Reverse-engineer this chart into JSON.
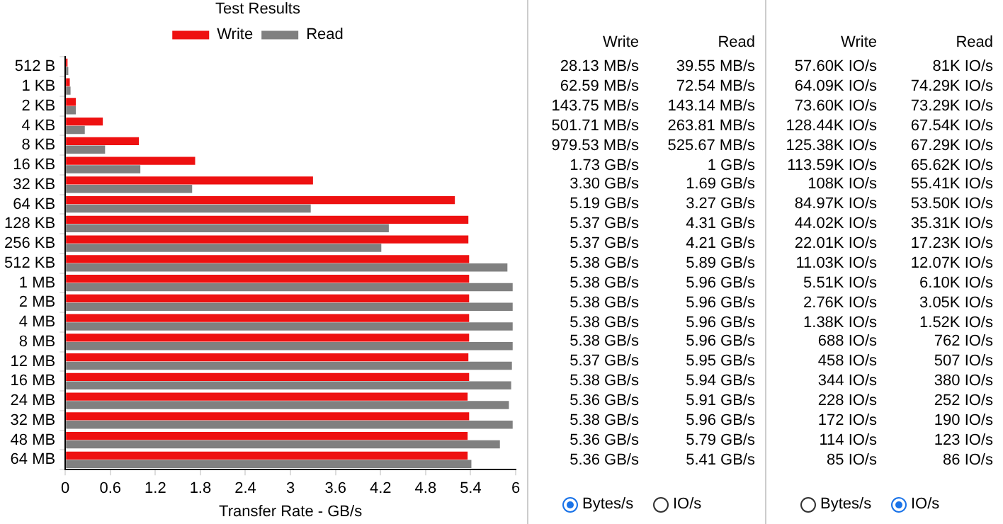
{
  "chart_data": [
    {
      "type": "bar",
      "orientation": "horizontal",
      "title": "Test Results",
      "xlabel": "Transfer Rate - GB/s",
      "categories": [
        "512 B",
        "1 KB",
        "2 KB",
        "4 KB",
        "8 KB",
        "16 KB",
        "32 KB",
        "64 KB",
        "128 KB",
        "256 KB",
        "512 KB",
        "1 MB",
        "2 MB",
        "4 MB",
        "8 MB",
        "12 MB",
        "16 MB",
        "24 MB",
        "32 MB",
        "48 MB",
        "64 MB"
      ],
      "series": [
        {
          "name": "Write",
          "color": "#ee1111",
          "values": [
            0.03,
            0.06,
            0.14,
            0.5,
            0.98,
            1.73,
            3.3,
            5.19,
            5.37,
            5.37,
            5.38,
            5.38,
            5.38,
            5.38,
            5.38,
            5.37,
            5.38,
            5.36,
            5.38,
            5.36,
            5.36
          ]
        },
        {
          "name": "Read",
          "color": "#808080",
          "values": [
            0.04,
            0.07,
            0.14,
            0.26,
            0.53,
            1,
            1.69,
            3.27,
            4.31,
            4.21,
            5.89,
            5.96,
            5.96,
            5.96,
            5.96,
            5.95,
            5.94,
            5.91,
            5.96,
            5.79,
            5.41
          ]
        }
      ],
      "xlim": [
        0,
        6
      ],
      "xticks": [
        0,
        0.6,
        1.2,
        1.8,
        2.4,
        3,
        3.6,
        4.2,
        4.8,
        5.4,
        6
      ],
      "legend": "top"
    },
    {
      "type": "other",
      "annotations": [
        "Write",
        "Read",
        "28.13 MB/s",
        "39.55 MB/s",
        "62.59 MB/s",
        "72.54 MB/s",
        "143.75 MB/s",
        "143.14 MB/s",
        "501.71 MB/s",
        "263.81 MB/s",
        "979.53 MB/s",
        "525.67 MB/s",
        "1.73 GB/s",
        "1 GB/s",
        "3.30 GB/s",
        "1.69 GB/s",
        "5.19 GB/s",
        "3.27 GB/s",
        "5.37 GB/s",
        "4.31 GB/s",
        "5.37 GB/s",
        "4.21 GB/s",
        "5.38 GB/s",
        "5.89 GB/s",
        "5.38 GB/s",
        "5.96 GB/s",
        "5.38 GB/s",
        "5.96 GB/s",
        "5.38 GB/s",
        "5.96 GB/s",
        "5.38 GB/s",
        "5.96 GB/s",
        "5.37 GB/s",
        "5.95 GB/s",
        "5.38 GB/s",
        "5.94 GB/s",
        "5.36 GB/s",
        "5.91 GB/s",
        "5.38 GB/s",
        "5.96 GB/s",
        "5.36 GB/s",
        "5.79 GB/s",
        "5.36 GB/s",
        "5.41 GB/s",
        "Bytes/s",
        "IO/s"
      ]
    },
    {
      "type": "other",
      "annotations": [
        "Write",
        "Read",
        "57.60K IO/s",
        "81K IO/s",
        "64.09K IO/s",
        "74.29K IO/s",
        "73.60K IO/s",
        "73.29K IO/s",
        "128.44K IO/s",
        "67.54K IO/s",
        "125.38K IO/s",
        "67.29K IO/s",
        "113.59K IO/s",
        "65.62K IO/s",
        "108K IO/s",
        "55.41K IO/s",
        "84.97K IO/s",
        "53.50K IO/s",
        "44.02K IO/s",
        "35.31K IO/s",
        "22.01K IO/s",
        "17.23K IO/s",
        "11.03K IO/s",
        "12.07K IO/s",
        "5.51K IO/s",
        "6.10K IO/s",
        "2.76K IO/s",
        "3.05K IO/s",
        "1.38K IO/s",
        "1.52K IO/s",
        "688 IO/s",
        "762 IO/s",
        "458 IO/s",
        "507 IO/s",
        "344 IO/s",
        "380 IO/s",
        "228 IO/s",
        "252 IO/s",
        "172 IO/s",
        "190 IO/s",
        "114 IO/s",
        "123 IO/s",
        "85 IO/s",
        "86 IO/s",
        "Bytes/s",
        "IO/s"
      ]
    }
  ]
}
